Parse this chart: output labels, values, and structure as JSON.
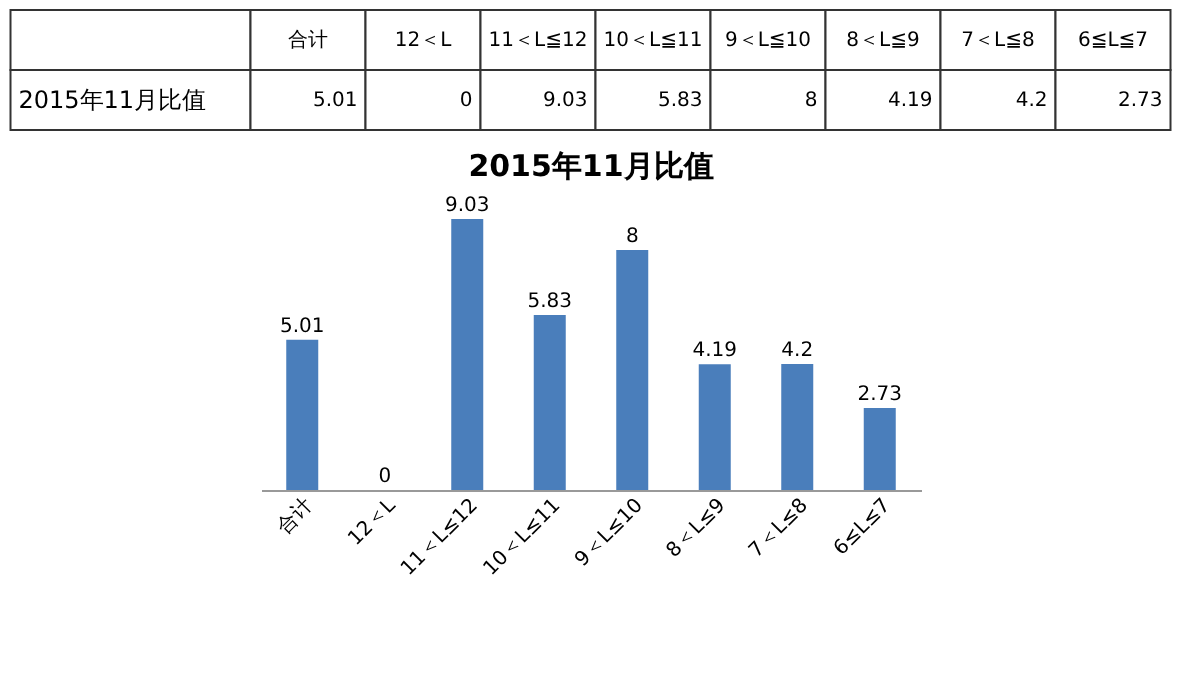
{
  "chart_data": [
    {
      "type": "other",
      "ylabel": "2015年11月比值",
      "categories": [
        "合计",
        "12＜L",
        "11＜L≦12",
        "10＜L≦11",
        "9＜L≦10",
        "8＜L≦9",
        "7＜L≦8",
        "6≦L≦7"
      ],
      "values": [
        5.01,
        0,
        9.03,
        5.83,
        8,
        4.19,
        4.2,
        2.73
      ],
      "data_labels": true
    },
    {
      "type": "bar",
      "title": "2015年11月比值",
      "categories": [
        "合计",
        "12＜L",
        "11＜L≤12",
        "10＜L≤11",
        "9＜L≤10",
        "8＜L≤9",
        "7＜L≤8",
        "6≤L≤7"
      ],
      "values": [
        5.01,
        0,
        9.03,
        5.83,
        8,
        4.19,
        4.2,
        2.73
      ],
      "color": "#4a7ebb",
      "data_labels": true
    }
  ]
}
